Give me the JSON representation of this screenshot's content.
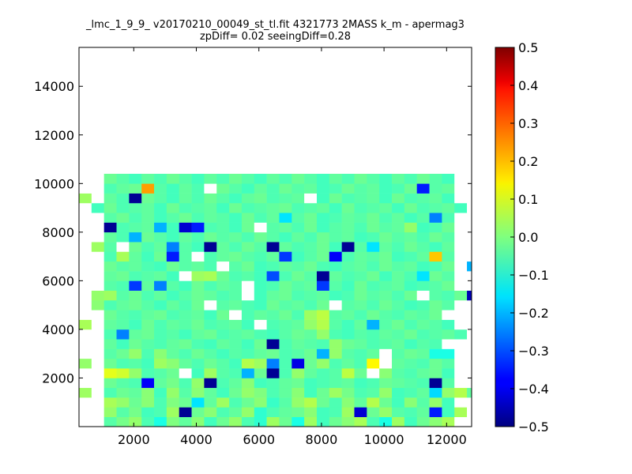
{
  "chart_data": {
    "type": "heatmap",
    "title": "_lmc_1_9_9_ v20170210_00049_st_tl.fit 4321773 2MASS k_m - apermag3",
    "subtitle": "zpDiff= 0.02 seeingDiff=0.28",
    "xlabel": "",
    "ylabel": "",
    "xlim": [
      250,
      12800
    ],
    "ylim": [
      0,
      15600
    ],
    "x_ticks": [
      2000,
      4000,
      6000,
      8000,
      10000,
      12000
    ],
    "y_ticks": [
      2000,
      4000,
      6000,
      8000,
      10000,
      12000,
      14000
    ],
    "x_tick_labels": [
      "2000",
      "4000",
      "6000",
      "8000",
      "10000",
      "12000"
    ],
    "y_tick_labels": [
      "2000",
      "4000",
      "6000",
      "8000",
      "10000",
      "12000",
      "14000"
    ],
    "colormap": "jet",
    "clim": [
      -0.5,
      0.5
    ],
    "colorbar_ticks": [
      0.5,
      0.4,
      0.3,
      0.2,
      0.1,
      0.0,
      -0.1,
      -0.2,
      -0.3,
      -0.4,
      -0.5
    ],
    "colorbar_tick_labels": [
      "0.5",
      "0.4",
      "0.3",
      "0.2",
      "0.1",
      "0.0",
      "−0.1",
      "−0.2",
      "−0.3",
      "−0.4",
      "−0.5"
    ],
    "cell_size": 400,
    "x_start": 250,
    "y_start": 0,
    "grid": false,
    "null_color": "#ffffff",
    "values": [
      [
        null,
        null,
        -0.04,
        -0.01,
        0.02,
        -0.05,
        -0.1,
        0.0,
        -0.03,
        0.01,
        -0.06,
        -0.02,
        0.02,
        -0.05,
        -0.08,
        0.03,
        -0.02,
        -0.1,
        0.03,
        -0.06,
        -0.02,
        0.01,
        0.04,
        -0.05,
        -0.1,
        0.03,
        -0.06,
        -0.02,
        0.01,
        0.04,
        null,
        null
      ],
      [
        null,
        null,
        0.02,
        -0.04,
        -0.01,
        -0.06,
        -0.05,
        0.03,
        -0.48,
        -0.02,
        0.01,
        -0.05,
        -0.03,
        0.02,
        -0.08,
        -0.05,
        -0.03,
        -0.02,
        0.01,
        -0.06,
        -0.05,
        0.03,
        -0.42,
        -0.02,
        0.02,
        -0.04,
        -0.05,
        -0.03,
        -0.35,
        -0.06,
        0.04,
        null
      ],
      [
        null,
        null,
        0.04,
        0.02,
        -0.02,
        0.01,
        -0.05,
        0.0,
        -0.02,
        -0.15,
        -0.03,
        0.03,
        -0.05,
        -0.02,
        0.01,
        -0.07,
        -0.04,
        0.02,
        0.05,
        -0.02,
        -0.05,
        0.01,
        -0.03,
        0.05,
        -0.02,
        -0.06,
        0.01,
        -0.04,
        0.02,
        -0.06,
        null,
        null
      ],
      [
        0.03,
        null,
        -0.05,
        -0.02,
        -0.03,
        0.01,
        -0.06,
        0.02,
        -0.04,
        0.01,
        -0.03,
        -0.06,
        -0.02,
        0.02,
        0.0,
        -0.05,
        -0.03,
        0.01,
        -0.06,
        -0.02,
        0.03,
        -0.01,
        -0.05,
        -0.04,
        0.02,
        -0.06,
        -0.05,
        -0.03,
        -0.16,
        0.02,
        0.05,
        -0.03
      ],
      [
        null,
        null,
        -0.02,
        -0.04,
        -0.05,
        -0.38,
        -0.03,
        -0.01,
        -0.05,
        0.02,
        -0.48,
        -0.05,
        -0.03,
        0.01,
        -0.06,
        -0.05,
        -0.03,
        -0.02,
        -0.06,
        -0.05,
        -0.04,
        -0.03,
        -0.06,
        -0.05,
        -0.02,
        -0.03,
        -0.04,
        -0.05,
        -0.48,
        -0.04,
        null,
        null
      ],
      [
        null,
        null,
        0.1,
        0.08,
        0.02,
        -0.05,
        -0.04,
        -0.02,
        null,
        -0.06,
        0.03,
        -0.04,
        -0.05,
        -0.2,
        -0.02,
        -0.48,
        -0.05,
        0.02,
        -0.03,
        -0.05,
        -0.04,
        0.06,
        -0.02,
        null,
        0.01,
        -0.04,
        -0.05,
        -0.03,
        -0.02,
        -0.06,
        null,
        null
      ],
      [
        0.02,
        null,
        -0.02,
        -0.05,
        -0.04,
        -0.06,
        0.03,
        0.01,
        -0.03,
        -0.05,
        -0.02,
        -0.04,
        -0.06,
        0.05,
        0.03,
        -0.25,
        -0.05,
        -0.4,
        -0.02,
        0.02,
        -0.05,
        -0.03,
        -0.05,
        0.13,
        null,
        -0.03,
        -0.04,
        -0.05,
        -0.02,
        -0.04,
        null,
        null
      ],
      [
        null,
        null,
        -0.04,
        -0.02,
        0.02,
        -0.05,
        0.01,
        -0.03,
        -0.05,
        -0.02,
        -0.04,
        -0.06,
        -0.04,
        -0.05,
        -0.03,
        -0.02,
        -0.05,
        -0.04,
        -0.02,
        -0.2,
        0.02,
        -0.04,
        -0.05,
        -0.03,
        null,
        -0.04,
        -0.02,
        -0.03,
        -0.1,
        -0.1,
        null,
        null
      ],
      [
        null,
        null,
        -0.03,
        -0.06,
        -0.02,
        -0.04,
        -0.05,
        -0.03,
        -0.02,
        -0.05,
        -0.06,
        -0.03,
        -0.04,
        -0.06,
        -0.02,
        -0.48,
        -0.05,
        -0.03,
        -0.04,
        -0.05,
        0.02,
        -0.02,
        -0.03,
        -0.05,
        -0.04,
        -0.03,
        -0.06,
        -0.04,
        -0.05,
        null,
        null,
        null
      ],
      [
        null,
        null,
        -0.05,
        -0.25,
        -0.03,
        -0.02,
        -0.05,
        -0.04,
        -0.06,
        -0.03,
        -0.02,
        -0.05,
        -0.04,
        -0.03,
        -0.05,
        -0.06,
        -0.04,
        -0.02,
        -0.03,
        0.02,
        -0.05,
        -0.06,
        -0.04,
        -0.05,
        -0.03,
        -0.04,
        -0.02,
        -0.05,
        -0.04,
        -0.03,
        -0.05,
        null
      ],
      [
        0.04,
        null,
        -0.03,
        -0.04,
        -0.06,
        -0.02,
        -0.05,
        -0.03,
        -0.04,
        -0.02,
        -0.05,
        -0.04,
        -0.03,
        -0.06,
        null,
        -0.05,
        -0.04,
        -0.03,
        0.02,
        0.05,
        -0.04,
        -0.06,
        -0.03,
        -0.2,
        -0.04,
        -0.02,
        -0.05,
        -0.03,
        -0.04,
        -0.06,
        null,
        null
      ],
      [
        null,
        null,
        -0.02,
        -0.04,
        -0.05,
        -0.03,
        -0.02,
        -0.05,
        -0.04,
        -0.03,
        -0.06,
        -0.02,
        null,
        -0.05,
        -0.03,
        -0.04,
        -0.02,
        -0.05,
        0.03,
        0.06,
        -0.04,
        -0.03,
        -0.05,
        -0.02,
        -0.04,
        -0.05,
        -0.03,
        -0.04,
        -0.02,
        null,
        null,
        null
      ],
      [
        null,
        0.01,
        -0.05,
        -0.03,
        -0.02,
        -0.04,
        -0.06,
        -0.03,
        -0.05,
        -0.02,
        null,
        -0.04,
        -0.03,
        -0.05,
        -0.06,
        -0.02,
        -0.04,
        -0.03,
        -0.05,
        -0.02,
        null,
        -0.04,
        -0.03,
        -0.05,
        -0.02,
        -0.04,
        -0.06,
        -0.05,
        -0.02,
        -0.04,
        null,
        null
      ],
      [
        null,
        0.02,
        0.03,
        -0.04,
        -0.02,
        -0.05,
        -0.03,
        -0.06,
        -0.04,
        -0.02,
        -0.03,
        -0.05,
        -0.04,
        null,
        -0.06,
        -0.03,
        -0.02,
        -0.05,
        -0.04,
        -0.03,
        -0.06,
        -0.05,
        -0.02,
        -0.04,
        -0.03,
        -0.05,
        -0.02,
        null,
        -0.04,
        -0.05,
        -0.02,
        -0.45
      ],
      [
        null,
        null,
        -0.04,
        -0.05,
        -0.32,
        -0.03,
        -0.25,
        -0.04,
        -0.06,
        -0.02,
        -0.05,
        -0.03,
        -0.04,
        null,
        -0.06,
        -0.05,
        -0.02,
        -0.04,
        -0.03,
        -0.32,
        -0.04,
        -0.06,
        -0.02,
        -0.05,
        -0.04,
        -0.03,
        -0.06,
        -0.05,
        -0.04,
        -0.02,
        null,
        null
      ],
      [
        null,
        null,
        -0.03,
        -0.02,
        -0.05,
        -0.04,
        -0.03,
        -0.06,
        null,
        0.03,
        0.04,
        -0.02,
        -0.05,
        -0.04,
        -0.06,
        -0.3,
        -0.05,
        -0.02,
        -0.04,
        -0.48,
        -0.03,
        -0.05,
        -0.04,
        -0.02,
        -0.06,
        -0.03,
        -0.05,
        -0.15,
        -0.02,
        -0.04,
        null,
        null
      ],
      [
        null,
        null,
        -0.02,
        -0.04,
        -0.03,
        -0.05,
        -0.06,
        -0.02,
        -0.04,
        -0.03,
        -0.05,
        null,
        -0.04,
        -0.02,
        -0.06,
        -0.05,
        -0.03,
        -0.04,
        -0.02,
        -0.05,
        -0.06,
        -0.04,
        -0.03,
        -0.05,
        -0.02,
        -0.04,
        -0.03,
        -0.06,
        -0.05,
        -0.02,
        null,
        -0.2
      ],
      [
        null,
        null,
        -0.05,
        0.04,
        -0.03,
        -0.06,
        -0.02,
        -0.35,
        -0.04,
        null,
        -0.05,
        -0.03,
        -0.02,
        -0.04,
        -0.05,
        -0.03,
        -0.32,
        -0.06,
        -0.04,
        -0.02,
        -0.38,
        -0.05,
        -0.03,
        -0.04,
        -0.02,
        -0.06,
        -0.05,
        -0.03,
        0.18,
        -0.04,
        null,
        null
      ],
      [
        null,
        0.03,
        -0.04,
        null,
        -0.02,
        -0.05,
        -0.03,
        -0.25,
        -0.04,
        -0.06,
        -0.48,
        -0.03,
        -0.05,
        -0.02,
        -0.04,
        -0.48,
        -0.03,
        -0.05,
        -0.04,
        -0.02,
        -0.06,
        -0.48,
        -0.04,
        -0.15,
        -0.03,
        -0.05,
        -0.02,
        -0.04,
        -0.06,
        -0.03,
        null,
        null
      ],
      [
        null,
        null,
        -0.03,
        -0.05,
        -0.2,
        -0.02,
        -0.04,
        -0.06,
        -0.03,
        -0.05,
        -0.02,
        -0.04,
        -0.03,
        -0.05,
        -0.02,
        -0.04,
        -0.06,
        -0.03,
        -0.05,
        -0.02,
        -0.04,
        -0.03,
        -0.06,
        -0.05,
        -0.02,
        -0.04,
        -0.03,
        -0.05,
        -0.02,
        -0.04,
        null,
        null
      ],
      [
        null,
        null,
        -0.48,
        -0.05,
        -0.04,
        -0.03,
        -0.2,
        -0.06,
        -0.42,
        -0.35,
        -0.05,
        -0.04,
        -0.06,
        -0.02,
        null,
        -0.04,
        -0.03,
        -0.05,
        -0.02,
        -0.06,
        -0.04,
        -0.03,
        -0.05,
        -0.02,
        -0.04,
        -0.03,
        0.02,
        -0.06,
        -0.05,
        -0.02,
        null,
        null
      ],
      [
        null,
        null,
        -0.04,
        -0.02,
        -0.05,
        -0.03,
        -0.06,
        -0.04,
        -0.02,
        -0.05,
        -0.03,
        -0.04,
        -0.06,
        -0.02,
        -0.05,
        -0.03,
        -0.15,
        -0.04,
        -0.02,
        -0.06,
        -0.05,
        -0.03,
        -0.04,
        -0.02,
        -0.05,
        -0.03,
        -0.06,
        -0.04,
        -0.25,
        -0.05,
        null,
        null
      ],
      [
        null,
        -0.06,
        -0.02,
        -0.05,
        -0.04,
        -0.03,
        -0.06,
        -0.02,
        -0.05,
        -0.04,
        -0.03,
        -0.06,
        -0.02,
        -0.05,
        -0.04,
        -0.03,
        -0.02,
        -0.05,
        -0.04,
        -0.03,
        -0.06,
        -0.02,
        -0.05,
        -0.04,
        -0.03,
        -0.06,
        -0.02,
        -0.05,
        -0.04,
        -0.03,
        -0.06,
        null
      ],
      [
        0.03,
        null,
        -0.03,
        -0.05,
        -0.48,
        -0.02,
        -0.04,
        -0.06,
        -0.03,
        -0.05,
        -0.02,
        -0.04,
        -0.06,
        -0.03,
        -0.02,
        -0.05,
        -0.04,
        -0.03,
        null,
        -0.06,
        -0.02,
        -0.05,
        -0.04,
        -0.03,
        -0.06,
        -0.02,
        -0.05,
        -0.04,
        -0.03,
        -0.06,
        null,
        null
      ],
      [
        null,
        null,
        -0.05,
        -0.03,
        -0.02,
        0.22,
        -0.04,
        -0.06,
        -0.03,
        -0.05,
        null,
        -0.02,
        -0.04,
        -0.06,
        -0.03,
        -0.05,
        -0.02,
        -0.04,
        -0.03,
        -0.06,
        -0.05,
        -0.02,
        -0.04,
        -0.03,
        -0.06,
        -0.05,
        -0.02,
        -0.35,
        -0.04,
        -0.03,
        null,
        null
      ],
      [
        null,
        null,
        -0.02,
        -0.04,
        -0.06,
        -0.03,
        -0.05,
        -0.02,
        -0.04,
        -0.06,
        -0.03,
        -0.05,
        -0.02,
        -0.04,
        -0.06,
        -0.03,
        -0.05,
        -0.02,
        -0.04,
        -0.06,
        -0.03,
        -0.05,
        -0.02,
        -0.04,
        -0.06,
        -0.03,
        -0.05,
        -0.02,
        -0.04,
        -0.06,
        null,
        null
      ]
    ]
  }
}
